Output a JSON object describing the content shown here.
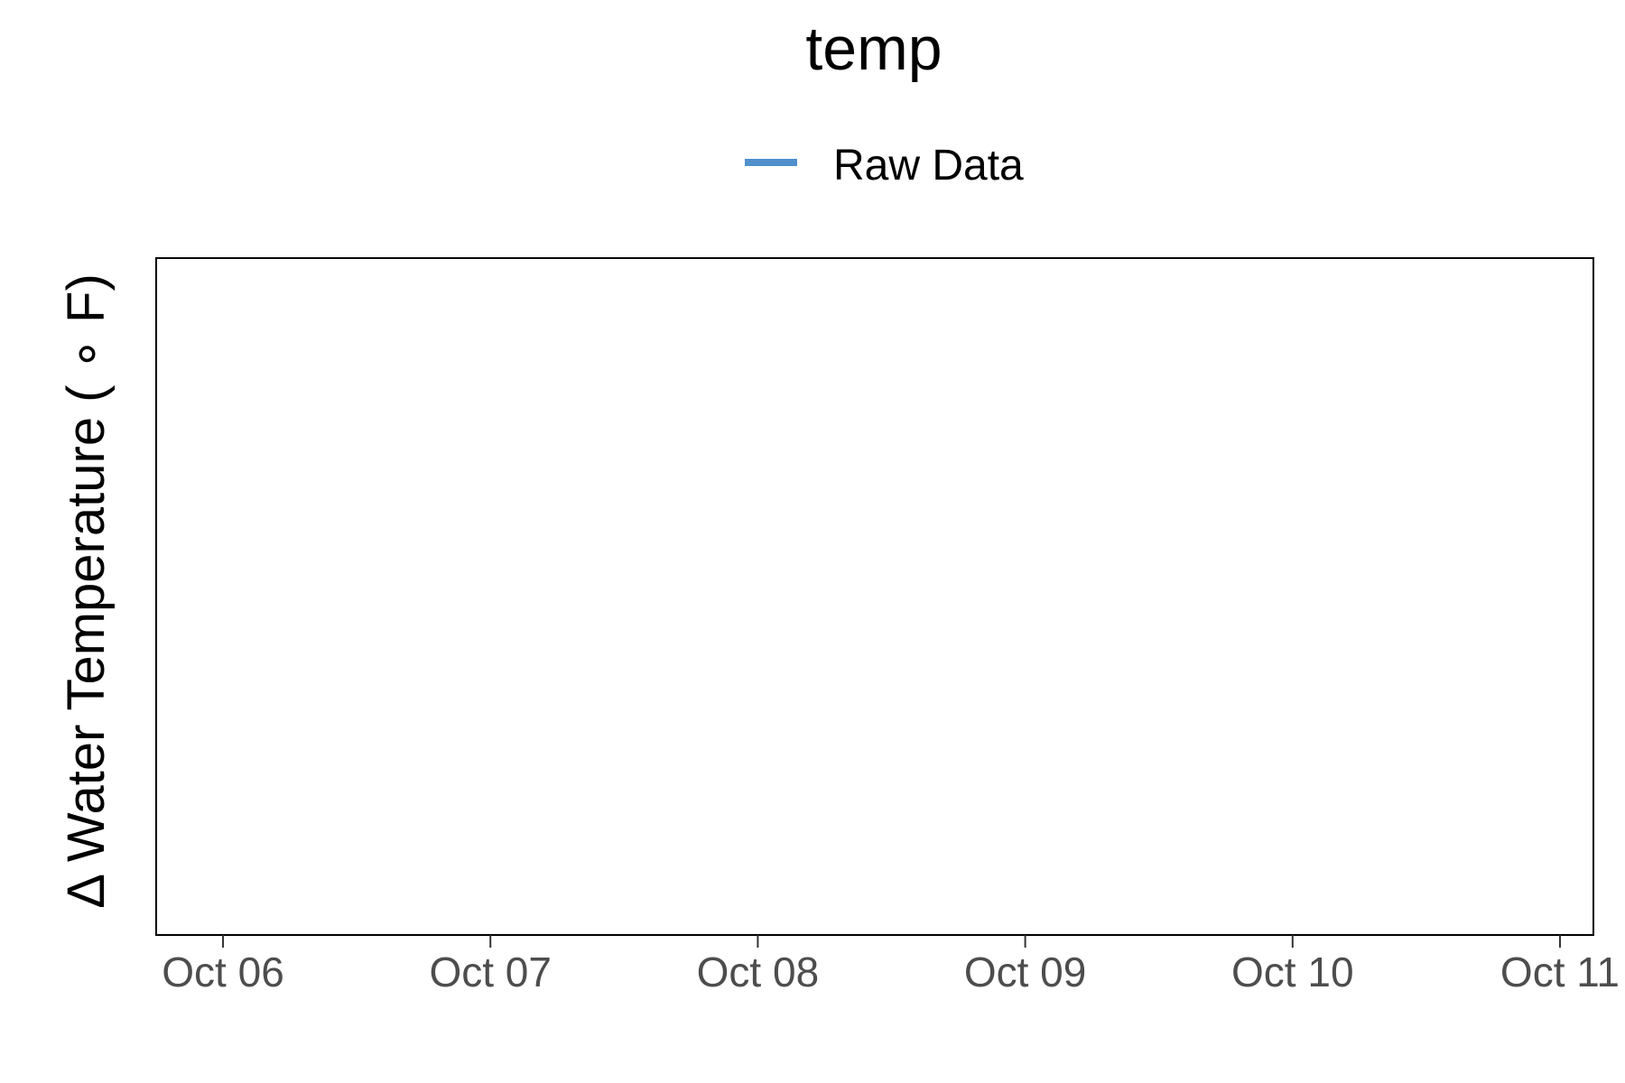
{
  "chart_data": {
    "type": "line",
    "title": "temp",
    "ylabel": "Δ Water Temperature ( ∘ F)",
    "xlabel": "",
    "x_ticks": [
      "Oct 06",
      "Oct 07",
      "Oct 08",
      "Oct 09",
      "Oct 10",
      "Oct 11"
    ],
    "x_tick_dates": [
      "2023-10-06",
      "2023-10-07",
      "2023-10-08",
      "2023-10-09",
      "2023-10-10",
      "2023-10-11"
    ],
    "xlim": [
      "2023-10-05T18:00",
      "2023-10-11T03:00"
    ],
    "grid": false,
    "legend_position": "top",
    "series": [
      {
        "name": "Raw Data",
        "color": "#4f90cd",
        "x": [],
        "y": []
      }
    ]
  }
}
